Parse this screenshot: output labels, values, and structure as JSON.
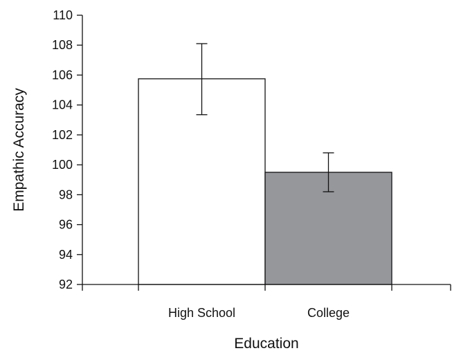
{
  "chart_data": {
    "type": "bar",
    "xlabel": "Education",
    "ylabel": "Empathic Accuracy",
    "categories": [
      "High School",
      "College"
    ],
    "values": [
      105.75,
      99.5
    ],
    "error_bars": [
      {
        "lower": 103.35,
        "upper": 108.1
      },
      {
        "lower": 98.2,
        "upper": 100.8
      }
    ],
    "bar_colors": [
      "#ffffff",
      "#96979b"
    ],
    "ylim": [
      92,
      110
    ],
    "yticks": [
      92,
      94,
      96,
      98,
      100,
      102,
      104,
      106,
      108,
      110
    ],
    "ytick_labels": [
      "92",
      "94",
      "96",
      "98",
      "100",
      "102",
      "104",
      "106",
      "108",
      "110"
    ],
    "grid": false,
    "legend": false
  }
}
